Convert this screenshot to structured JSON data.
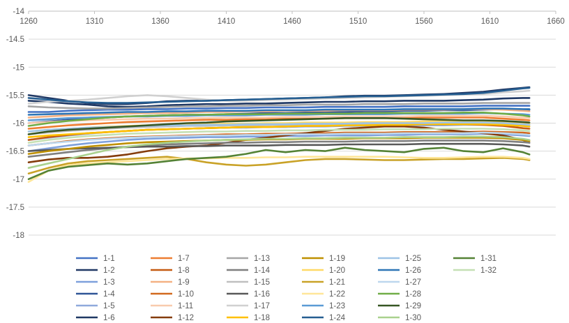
{
  "chart_data": {
    "type": "line",
    "xlim": [
      1260,
      1660
    ],
    "ylim": [
      -18,
      -14
    ],
    "x_ticks": [
      "1260",
      "1310",
      "1360",
      "1410",
      "1460",
      "1510",
      "1560",
      "1610",
      "1660"
    ],
    "y_ticks": [
      "-14",
      "-14.5",
      "-15",
      "-15.5",
      "-16",
      "-16.5",
      "-17",
      "-17.5",
      "-18"
    ],
    "x_axis_position": "top",
    "grid": "horizontal",
    "legend_position": "bottom",
    "x": [
      1260,
      1275,
      1290,
      1305,
      1320,
      1335,
      1350,
      1365,
      1380,
      1395,
      1410,
      1425,
      1440,
      1455,
      1470,
      1485,
      1500,
      1515,
      1530,
      1545,
      1560,
      1575,
      1590,
      1605,
      1620,
      1635,
      1640
    ],
    "series": [
      {
        "name": "1-1",
        "color": "#4472c4",
        "values": [
          -15.8,
          -15.8,
          -15.78,
          -15.77,
          -15.76,
          -15.76,
          -15.75,
          -15.75,
          -15.74,
          -15.74,
          -15.73,
          -15.73,
          -15.72,
          -15.72,
          -15.72,
          -15.71,
          -15.71,
          -15.71,
          -15.71,
          -15.7,
          -15.7,
          -15.7,
          -15.7,
          -15.69,
          -15.69,
          -15.69,
          -15.69
        ]
      },
      {
        "name": "1-2",
        "color": "#203864",
        "values": [
          -15.5,
          -15.55,
          -15.6,
          -15.64,
          -15.66,
          -15.66,
          -15.64,
          -15.61,
          -15.6,
          -15.6,
          -15.59,
          -15.58,
          -15.57,
          -15.56,
          -15.55,
          -15.54,
          -15.52,
          -15.51,
          -15.51,
          -15.5,
          -15.49,
          -15.48,
          -15.46,
          -15.44,
          -15.4,
          -15.37,
          -15.36
        ]
      },
      {
        "name": "1-3",
        "color": "#7ea0dc",
        "values": [
          -16.5,
          -16.45,
          -16.4,
          -16.36,
          -16.33,
          -16.3,
          -16.28,
          -16.27,
          -16.26,
          -16.25,
          -16.25,
          -16.24,
          -16.24,
          -16.23,
          -16.23,
          -16.22,
          -16.22,
          -16.22,
          -16.21,
          -16.21,
          -16.2,
          -16.2,
          -16.2,
          -16.19,
          -16.2,
          -16.22,
          -16.23
        ]
      },
      {
        "name": "1-4",
        "color": "#2f5597",
        "values": [
          -16.0,
          -15.97,
          -15.94,
          -15.92,
          -15.9,
          -15.88,
          -15.87,
          -15.86,
          -15.85,
          -15.85,
          -15.84,
          -15.83,
          -15.82,
          -15.82,
          -15.81,
          -15.8,
          -15.8,
          -15.79,
          -15.79,
          -15.78,
          -15.78,
          -15.77,
          -15.77,
          -15.76,
          -15.75,
          -15.76,
          -15.76
        ]
      },
      {
        "name": "1-5",
        "color": "#8faadc",
        "values": [
          -16.3,
          -16.26,
          -16.22,
          -16.19,
          -16.16,
          -16.14,
          -16.12,
          -16.11,
          -16.1,
          -16.09,
          -16.08,
          -16.08,
          -16.07,
          -16.07,
          -16.06,
          -16.06,
          -16.05,
          -16.05,
          -16.05,
          -16.04,
          -16.04,
          -16.04,
          -16.03,
          -16.03,
          -16.03,
          -16.05,
          -16.06
        ]
      },
      {
        "name": "1-6",
        "color": "#1f3864",
        "values": [
          -15.6,
          -15.62,
          -15.65,
          -15.67,
          -15.7,
          -15.71,
          -15.7,
          -15.68,
          -15.67,
          -15.66,
          -15.66,
          -15.65,
          -15.65,
          -15.64,
          -15.63,
          -15.62,
          -15.62,
          -15.61,
          -15.61,
          -15.6,
          -15.6,
          -15.6,
          -15.59,
          -15.58,
          -15.56,
          -15.55,
          -15.55
        ]
      },
      {
        "name": "1-7",
        "color": "#ed7d31",
        "values": [
          -16.1,
          -16.07,
          -16.04,
          -16.02,
          -16.0,
          -15.98,
          -15.97,
          -15.96,
          -15.95,
          -15.94,
          -15.94,
          -15.93,
          -15.93,
          -15.92,
          -15.92,
          -15.92,
          -15.91,
          -15.91,
          -15.91,
          -15.9,
          -15.9,
          -15.9,
          -15.9,
          -15.9,
          -15.92,
          -15.94,
          -15.95
        ]
      },
      {
        "name": "1-8",
        "color": "#c55a11",
        "values": [
          -16.3,
          -16.25,
          -16.21,
          -16.18,
          -16.16,
          -16.14,
          -16.12,
          -16.11,
          -16.1,
          -16.09,
          -16.08,
          -16.07,
          -16.07,
          -16.06,
          -16.05,
          -16.05,
          -16.04,
          -16.04,
          -16.03,
          -16.03,
          -16.02,
          -16.02,
          -16.02,
          -16.03,
          -16.05,
          -16.09,
          -16.1
        ]
      },
      {
        "name": "1-9",
        "color": "#f4b183",
        "values": [
          -15.9,
          -15.88,
          -15.86,
          -15.85,
          -15.84,
          -15.83,
          -15.82,
          -15.82,
          -15.81,
          -15.8,
          -15.8,
          -15.79,
          -15.79,
          -15.78,
          -15.78,
          -15.78,
          -15.77,
          -15.77,
          -15.77,
          -15.76,
          -15.76,
          -15.76,
          -15.75,
          -15.75,
          -15.76,
          -15.78,
          -15.79
        ]
      },
      {
        "name": "1-10",
        "color": "#d2691e",
        "values": [
          -16.4,
          -16.36,
          -16.32,
          -16.29,
          -16.27,
          -16.25,
          -16.24,
          -16.23,
          -16.22,
          -16.21,
          -16.2,
          -16.2,
          -16.19,
          -16.19,
          -16.18,
          -16.18,
          -16.17,
          -16.17,
          -16.17,
          -16.16,
          -16.16,
          -16.16,
          -16.16,
          -16.15,
          -16.16,
          -16.17,
          -16.18
        ]
      },
      {
        "name": "1-11",
        "color": "#f8cbad",
        "values": [
          -16.0,
          -15.98,
          -15.96,
          -15.95,
          -15.94,
          -15.93,
          -15.92,
          -15.92,
          -15.91,
          -15.91,
          -15.9,
          -15.9,
          -15.9,
          -15.89,
          -15.89,
          -15.89,
          -15.88,
          -15.88,
          -15.88,
          -15.88,
          -15.87,
          -15.87,
          -15.87,
          -15.87,
          -15.88,
          -15.9,
          -15.91
        ]
      },
      {
        "name": "1-12",
        "color": "#843c0c",
        "values": [
          -16.7,
          -16.65,
          -16.62,
          -16.62,
          -16.6,
          -16.56,
          -16.5,
          -16.45,
          -16.42,
          -16.4,
          -16.35,
          -16.3,
          -16.26,
          -16.22,
          -16.18,
          -16.14,
          -16.1,
          -16.08,
          -16.06,
          -16.06,
          -16.08,
          -16.12,
          -16.15,
          -16.18,
          -16.22,
          -16.3,
          -16.35
        ]
      },
      {
        "name": "1-13",
        "color": "#a5a5a5",
        "values": [
          -15.7,
          -15.72,
          -15.73,
          -15.74,
          -15.74,
          -15.73,
          -15.72,
          -15.71,
          -15.7,
          -15.7,
          -15.69,
          -15.69,
          -15.68,
          -15.68,
          -15.67,
          -15.67,
          -15.67,
          -15.66,
          -15.66,
          -15.66,
          -15.65,
          -15.65,
          -15.65,
          -15.64,
          -15.64,
          -15.64,
          -15.64
        ]
      },
      {
        "name": "1-14",
        "color": "#7f7f7f",
        "values": [
          -16.6,
          -16.56,
          -16.52,
          -16.48,
          -16.45,
          -16.42,
          -16.4,
          -16.38,
          -16.37,
          -16.36,
          -16.35,
          -16.35,
          -16.34,
          -16.34,
          -16.33,
          -16.33,
          -16.33,
          -16.32,
          -16.32,
          -16.32,
          -16.31,
          -16.31,
          -16.31,
          -16.31,
          -16.32,
          -16.34,
          -16.35
        ]
      },
      {
        "name": "1-15",
        "color": "#bfbfbf",
        "values": [
          -16.2,
          -16.17,
          -16.14,
          -16.12,
          -16.1,
          -16.08,
          -16.07,
          -16.06,
          -16.05,
          -16.05,
          -16.04,
          -16.04,
          -16.03,
          -16.03,
          -16.02,
          -16.02,
          -16.02,
          -16.01,
          -16.01,
          -16.01,
          -16.0,
          -16.0,
          -16.0,
          -16.0,
          -16.01,
          -16.02,
          -16.03
        ]
      },
      {
        "name": "1-16",
        "color": "#595959",
        "values": [
          -16.5,
          -16.48,
          -16.46,
          -16.45,
          -16.44,
          -16.43,
          -16.42,
          -16.42,
          -16.41,
          -16.41,
          -16.4,
          -16.4,
          -16.4,
          -16.39,
          -16.39,
          -16.39,
          -16.38,
          -16.38,
          -16.38,
          -16.38,
          -16.37,
          -16.37,
          -16.37,
          -16.37,
          -16.38,
          -16.4,
          -16.42
        ]
      },
      {
        "name": "1-17",
        "color": "#d0d0d0",
        "values": [
          -15.65,
          -15.62,
          -15.6,
          -15.58,
          -15.55,
          -15.52,
          -15.5,
          -15.52,
          -15.55,
          -15.58,
          -15.6,
          -15.6,
          -15.59,
          -15.58,
          -15.57,
          -15.56,
          -15.55,
          -15.54,
          -15.53,
          -15.52,
          -15.51,
          -15.5,
          -15.49,
          -15.48,
          -15.45,
          -15.43,
          -15.42
        ]
      },
      {
        "name": "1-18",
        "color": "#ffc000",
        "values": [
          -16.25,
          -16.22,
          -16.2,
          -16.18,
          -16.16,
          -16.14,
          -16.12,
          -16.11,
          -16.1,
          -16.09,
          -16.08,
          -16.07,
          -16.07,
          -16.06,
          -16.05,
          -16.05,
          -16.04,
          -16.04,
          -16.03,
          -16.03,
          -16.02,
          -16.02,
          -16.02,
          -16.02,
          -16.03,
          -16.05,
          -16.06
        ]
      },
      {
        "name": "1-19",
        "color": "#bf9000",
        "values": [
          -16.55,
          -16.5,
          -16.46,
          -16.42,
          -16.39,
          -16.36,
          -16.34,
          -16.33,
          -16.32,
          -16.31,
          -16.3,
          -16.3,
          -16.29,
          -16.29,
          -16.28,
          -16.28,
          -16.28,
          -16.27,
          -16.27,
          -16.27,
          -16.26,
          -16.26,
          -16.26,
          -16.26,
          -16.27,
          -16.3,
          -16.32
        ]
      },
      {
        "name": "1-20",
        "color": "#ffd966",
        "values": [
          -16.15,
          -16.12,
          -16.1,
          -16.08,
          -16.06,
          -16.05,
          -16.04,
          -16.03,
          -16.02,
          -16.02,
          -16.01,
          -16.01,
          -16.0,
          -16.0,
          -15.99,
          -15.99,
          -15.99,
          -15.98,
          -15.98,
          -15.98,
          -15.97,
          -15.97,
          -15.97,
          -15.97,
          -15.98,
          -16.0,
          -16.01
        ]
      },
      {
        "name": "1-21",
        "color": "#c9a227",
        "values": [
          -16.9,
          -16.8,
          -16.72,
          -16.68,
          -16.66,
          -16.64,
          -16.62,
          -16.6,
          -16.64,
          -16.7,
          -16.74,
          -16.76,
          -16.74,
          -16.7,
          -16.66,
          -16.64,
          -16.64,
          -16.65,
          -16.66,
          -16.66,
          -16.65,
          -16.64,
          -16.64,
          -16.63,
          -16.62,
          -16.64,
          -16.66
        ]
      },
      {
        "name": "1-22",
        "color": "#ffe699",
        "values": [
          -17.05,
          -16.85,
          -16.75,
          -16.72,
          -16.7,
          -16.68,
          -16.66,
          -16.64,
          -16.63,
          -16.63,
          -16.62,
          -16.62,
          -16.61,
          -16.61,
          -16.6,
          -16.6,
          -16.6,
          -16.6,
          -16.6,
          -16.61,
          -16.62,
          -16.62,
          -16.61,
          -16.6,
          -16.6,
          -16.62,
          -16.64
        ]
      },
      {
        "name": "1-23",
        "color": "#5b9bd5",
        "values": [
          -15.95,
          -15.93,
          -15.91,
          -15.9,
          -15.89,
          -15.88,
          -15.88,
          -15.87,
          -15.87,
          -15.86,
          -15.86,
          -15.86,
          -15.85,
          -15.85,
          -15.85,
          -15.84,
          -15.84,
          -15.84,
          -15.84,
          -15.83,
          -15.83,
          -15.83,
          -15.83,
          -15.82,
          -15.83,
          -15.84,
          -15.85
        ]
      },
      {
        "name": "1-24",
        "color": "#255e91",
        "values": [
          -15.55,
          -15.58,
          -15.61,
          -15.63,
          -15.64,
          -15.64,
          -15.63,
          -15.62,
          -15.61,
          -15.6,
          -15.59,
          -15.58,
          -15.57,
          -15.56,
          -15.55,
          -15.54,
          -15.53,
          -15.52,
          -15.52,
          -15.51,
          -15.5,
          -15.49,
          -15.48,
          -15.46,
          -15.42,
          -15.38,
          -15.37
        ]
      },
      {
        "name": "1-25",
        "color": "#9dc3e6",
        "values": [
          -16.15,
          -16.12,
          -16.1,
          -16.08,
          -16.07,
          -16.06,
          -16.05,
          -16.04,
          -16.04,
          -16.03,
          -16.03,
          -16.02,
          -16.02,
          -16.02,
          -16.01,
          -16.01,
          -16.01,
          -16.0,
          -16.0,
          -16.0,
          -16.0,
          -15.99,
          -15.99,
          -15.99,
          -16.0,
          -16.02,
          -16.03
        ]
      },
      {
        "name": "1-26",
        "color": "#2e75b6",
        "values": [
          -15.85,
          -15.84,
          -15.83,
          -15.82,
          -15.81,
          -15.8,
          -15.8,
          -15.79,
          -15.79,
          -15.78,
          -15.78,
          -15.78,
          -15.77,
          -15.77,
          -15.77,
          -15.76,
          -15.76,
          -15.76,
          -15.76,
          -15.75,
          -15.75,
          -15.75,
          -15.75,
          -15.74,
          -15.74,
          -15.75,
          -15.75
        ]
      },
      {
        "name": "1-27",
        "color": "#bdd7ee",
        "values": [
          -16.4,
          -16.36,
          -16.33,
          -16.3,
          -16.28,
          -16.26,
          -16.25,
          -16.24,
          -16.23,
          -16.22,
          -16.22,
          -16.21,
          -16.21,
          -16.2,
          -16.2,
          -16.2,
          -16.19,
          -16.19,
          -16.19,
          -16.18,
          -16.18,
          -16.18,
          -16.18,
          -16.17,
          -16.18,
          -16.2,
          -16.21
        ]
      },
      {
        "name": "1-28",
        "color": "#70ad47",
        "values": [
          -16.05,
          -16.0,
          -15.96,
          -15.93,
          -15.9,
          -15.88,
          -15.87,
          -15.86,
          -15.85,
          -15.85,
          -15.84,
          -15.84,
          -15.84,
          -15.83,
          -15.83,
          -15.83,
          -15.83,
          -15.82,
          -15.82,
          -15.82,
          -15.82,
          -15.82,
          -15.81,
          -15.81,
          -15.83,
          -15.86,
          -15.88
        ]
      },
      {
        "name": "1-29",
        "color": "#375623",
        "values": [
          -16.2,
          -16.15,
          -16.12,
          -16.1,
          -16.08,
          -16.06,
          -16.04,
          -16.02,
          -16.0,
          -15.99,
          -15.97,
          -15.96,
          -15.95,
          -15.94,
          -15.93,
          -15.92,
          -15.91,
          -15.91,
          -15.91,
          -15.92,
          -15.93,
          -15.94,
          -15.95,
          -15.95,
          -15.96,
          -15.98,
          -15.99
        ]
      },
      {
        "name": "1-30",
        "color": "#a9d18e",
        "values": [
          -16.8,
          -16.72,
          -16.64,
          -16.56,
          -16.48,
          -16.42,
          -16.38,
          -16.35,
          -16.33,
          -16.31,
          -16.3,
          -16.29,
          -16.28,
          -16.28,
          -16.27,
          -16.27,
          -16.26,
          -16.26,
          -16.26,
          -16.25,
          -16.25,
          -16.25,
          -16.24,
          -16.24,
          -16.25,
          -16.28,
          -16.3
        ]
      },
      {
        "name": "1-31",
        "color": "#548235",
        "values": [
          -17.0,
          -16.85,
          -16.78,
          -16.75,
          -16.72,
          -16.74,
          -16.72,
          -16.68,
          -16.64,
          -16.62,
          -16.6,
          -16.55,
          -16.48,
          -16.52,
          -16.48,
          -16.5,
          -16.44,
          -16.48,
          -16.5,
          -16.52,
          -16.46,
          -16.44,
          -16.5,
          -16.52,
          -16.45,
          -16.52,
          -16.56
        ]
      },
      {
        "name": "1-32",
        "color": "#c5e0b4",
        "values": [
          -16.35,
          -16.3,
          -16.26,
          -16.23,
          -16.21,
          -16.19,
          -16.18,
          -16.17,
          -16.16,
          -16.15,
          -16.15,
          -16.14,
          -16.14,
          -16.13,
          -16.13,
          -16.12,
          -16.12,
          -16.12,
          -16.11,
          -16.11,
          -16.11,
          -16.1,
          -16.1,
          -16.1,
          -16.11,
          -16.13,
          -16.14
        ]
      }
    ]
  }
}
